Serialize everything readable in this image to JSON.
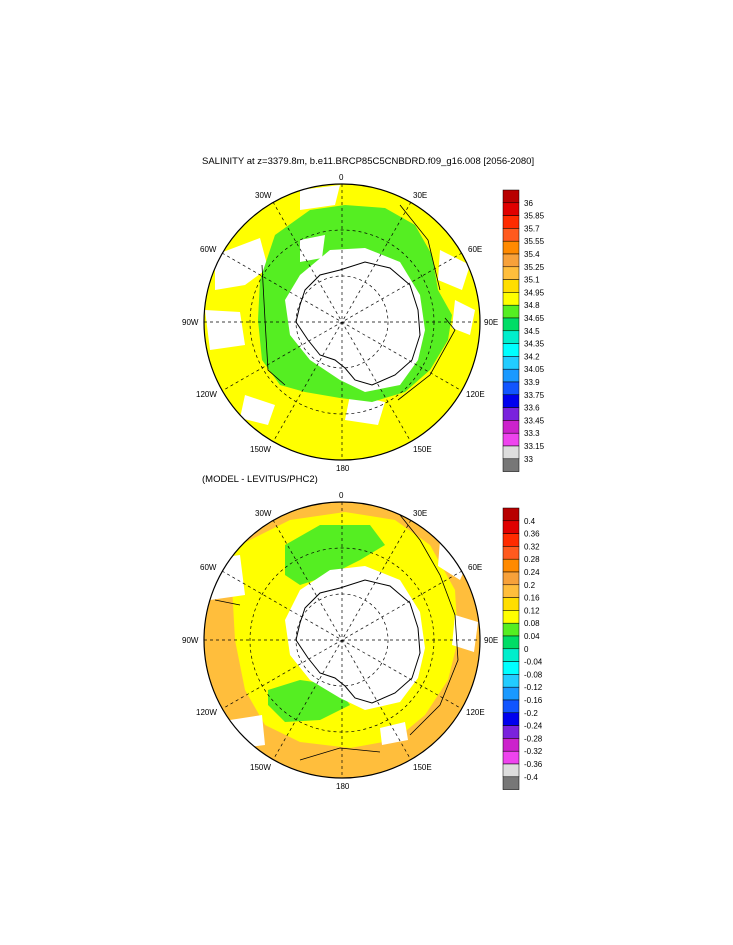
{
  "top_panel": {
    "title": "SALINITY at z=3379.8m, b.e11.BRCP85C5CNBDRD.f09_g16.008 [2056-2080]",
    "colorbar": {
      "labels": [
        "36",
        "35.85",
        "35.7",
        "35.55",
        "35.4",
        "35.25",
        "35.1",
        "34.95",
        "34.8",
        "34.65",
        "34.5",
        "34.35",
        "34.2",
        "34.05",
        "33.9",
        "33.75",
        "33.6",
        "33.45",
        "33.3",
        "33.15",
        "33"
      ],
      "colors": [
        "#b80000",
        "#e00000",
        "#ff2b00",
        "#ff5a1e",
        "#ff8a00",
        "#f7a13a",
        "#ffbe3c",
        "#ffde00",
        "#ffff00",
        "#55ee22",
        "#00dd66",
        "#00eecc",
        "#00ffff",
        "#22ccff",
        "#1a99ff",
        "#1155ff",
        "#0000ee",
        "#7a22dd",
        "#cc22cc",
        "#ee44ee",
        "#dddddd",
        "#777777"
      ]
    }
  },
  "bottom_panel": {
    "title": "(MODEL - LEVITUS/PHC2)",
    "colorbar": {
      "labels": [
        "0.4",
        "0.36",
        "0.32",
        "0.28",
        "0.24",
        "0.2",
        "0.16",
        "0.12",
        "0.08",
        "0.04",
        "0",
        "-0.04",
        "-0.08",
        "-0.12",
        "-0.16",
        "-0.2",
        "-0.24",
        "-0.28",
        "-0.32",
        "-0.36",
        "-0.4"
      ],
      "colors": [
        "#b80000",
        "#e00000",
        "#ff2b00",
        "#ff5a1e",
        "#ff8a00",
        "#f7a13a",
        "#ffbe3c",
        "#ffde00",
        "#ffff00",
        "#55ee22",
        "#00dd66",
        "#00eecc",
        "#00ffff",
        "#22ccff",
        "#1a99ff",
        "#1155ff",
        "#0000ee",
        "#7a22dd",
        "#cc22cc",
        "#ee44ee",
        "#dddddd",
        "#777777"
      ]
    }
  },
  "map_labels": {
    "top": "0",
    "bottom": "180",
    "left": "90W",
    "right": "90E",
    "ul1": "30W",
    "ul2": "60W",
    "ur1": "30E",
    "ur2": "60E",
    "ll1": "120W",
    "ll2": "150W",
    "lr1": "120E",
    "lr2": "150E"
  },
  "field_colors": {
    "top": {
      "outer": "#ffff00",
      "inner": "#55ee22",
      "land": "#ffffff"
    },
    "bottom": {
      "outer": "#ffbe3c",
      "mid": "#ffff00",
      "inner": "#55ee22",
      "land": "#ffffff"
    }
  }
}
